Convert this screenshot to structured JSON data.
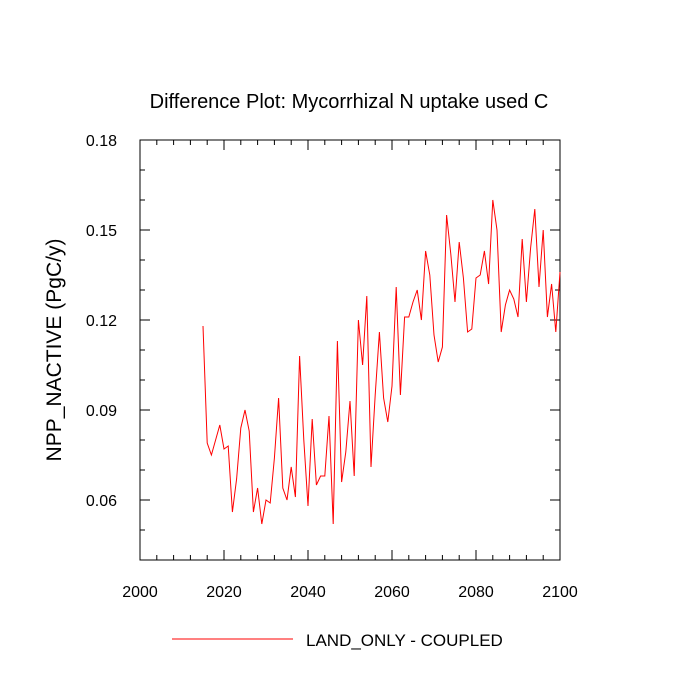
{
  "chart_data": {
    "type": "line",
    "title": "Difference Plot: Mycorrhizal N uptake used C",
    "xlabel": "",
    "ylabel": "NPP_NACTIVE  (PgC/y)",
    "xlim": [
      2000,
      2100
    ],
    "ylim": [
      0.04,
      0.18
    ],
    "xticks": [
      2000,
      2020,
      2040,
      2060,
      2080,
      2100
    ],
    "xtick_labels": [
      "2000",
      "2020",
      "2040",
      "2060",
      "2080",
      "2100"
    ],
    "yticks": [
      0.06,
      0.09,
      0.12,
      0.15,
      0.18
    ],
    "ytick_labels": [
      "0.06",
      "0.09",
      "0.12",
      "0.15",
      "0.18"
    ],
    "grid": false,
    "legend_position": "bottom-center",
    "series": [
      {
        "name": "LAND_ONLY - COUPLED",
        "color": "#ff0000",
        "x": [
          2015,
          2016,
          2017,
          2018,
          2019,
          2020,
          2021,
          2022,
          2023,
          2024,
          2025,
          2026,
          2027,
          2028,
          2029,
          2030,
          2031,
          2032,
          2033,
          2034,
          2035,
          2036,
          2037,
          2038,
          2039,
          2040,
          2041,
          2042,
          2043,
          2044,
          2045,
          2046,
          2047,
          2048,
          2049,
          2050,
          2051,
          2052,
          2053,
          2054,
          2055,
          2056,
          2057,
          2058,
          2059,
          2060,
          2061,
          2062,
          2063,
          2064,
          2065,
          2066,
          2067,
          2068,
          2069,
          2070,
          2071,
          2072,
          2073,
          2074,
          2075,
          2076,
          2077,
          2078,
          2079,
          2080,
          2081,
          2082,
          2083,
          2084,
          2085,
          2086,
          2087,
          2088,
          2089,
          2090,
          2091,
          2092,
          2093,
          2094,
          2095,
          2096,
          2097,
          2098,
          2099,
          2100
        ],
        "y": [
          0.118,
          0.079,
          0.075,
          0.08,
          0.085,
          0.077,
          0.078,
          0.056,
          0.067,
          0.084,
          0.09,
          0.083,
          0.056,
          0.064,
          0.052,
          0.06,
          0.059,
          0.074,
          0.094,
          0.064,
          0.06,
          0.071,
          0.061,
          0.108,
          0.08,
          0.058,
          0.087,
          0.065,
          0.068,
          0.068,
          0.088,
          0.052,
          0.113,
          0.066,
          0.076,
          0.093,
          0.068,
          0.12,
          0.105,
          0.128,
          0.071,
          0.095,
          0.116,
          0.094,
          0.086,
          0.098,
          0.131,
          0.095,
          0.121,
          0.121,
          0.126,
          0.13,
          0.12,
          0.143,
          0.135,
          0.115,
          0.106,
          0.111,
          0.155,
          0.142,
          0.126,
          0.146,
          0.134,
          0.116,
          0.117,
          0.134,
          0.135,
          0.143,
          0.132,
          0.16,
          0.15,
          0.116,
          0.125,
          0.13,
          0.127,
          0.121,
          0.147,
          0.126,
          0.144,
          0.157,
          0.131,
          0.15,
          0.121,
          0.132,
          0.116,
          0.136
        ]
      }
    ]
  }
}
